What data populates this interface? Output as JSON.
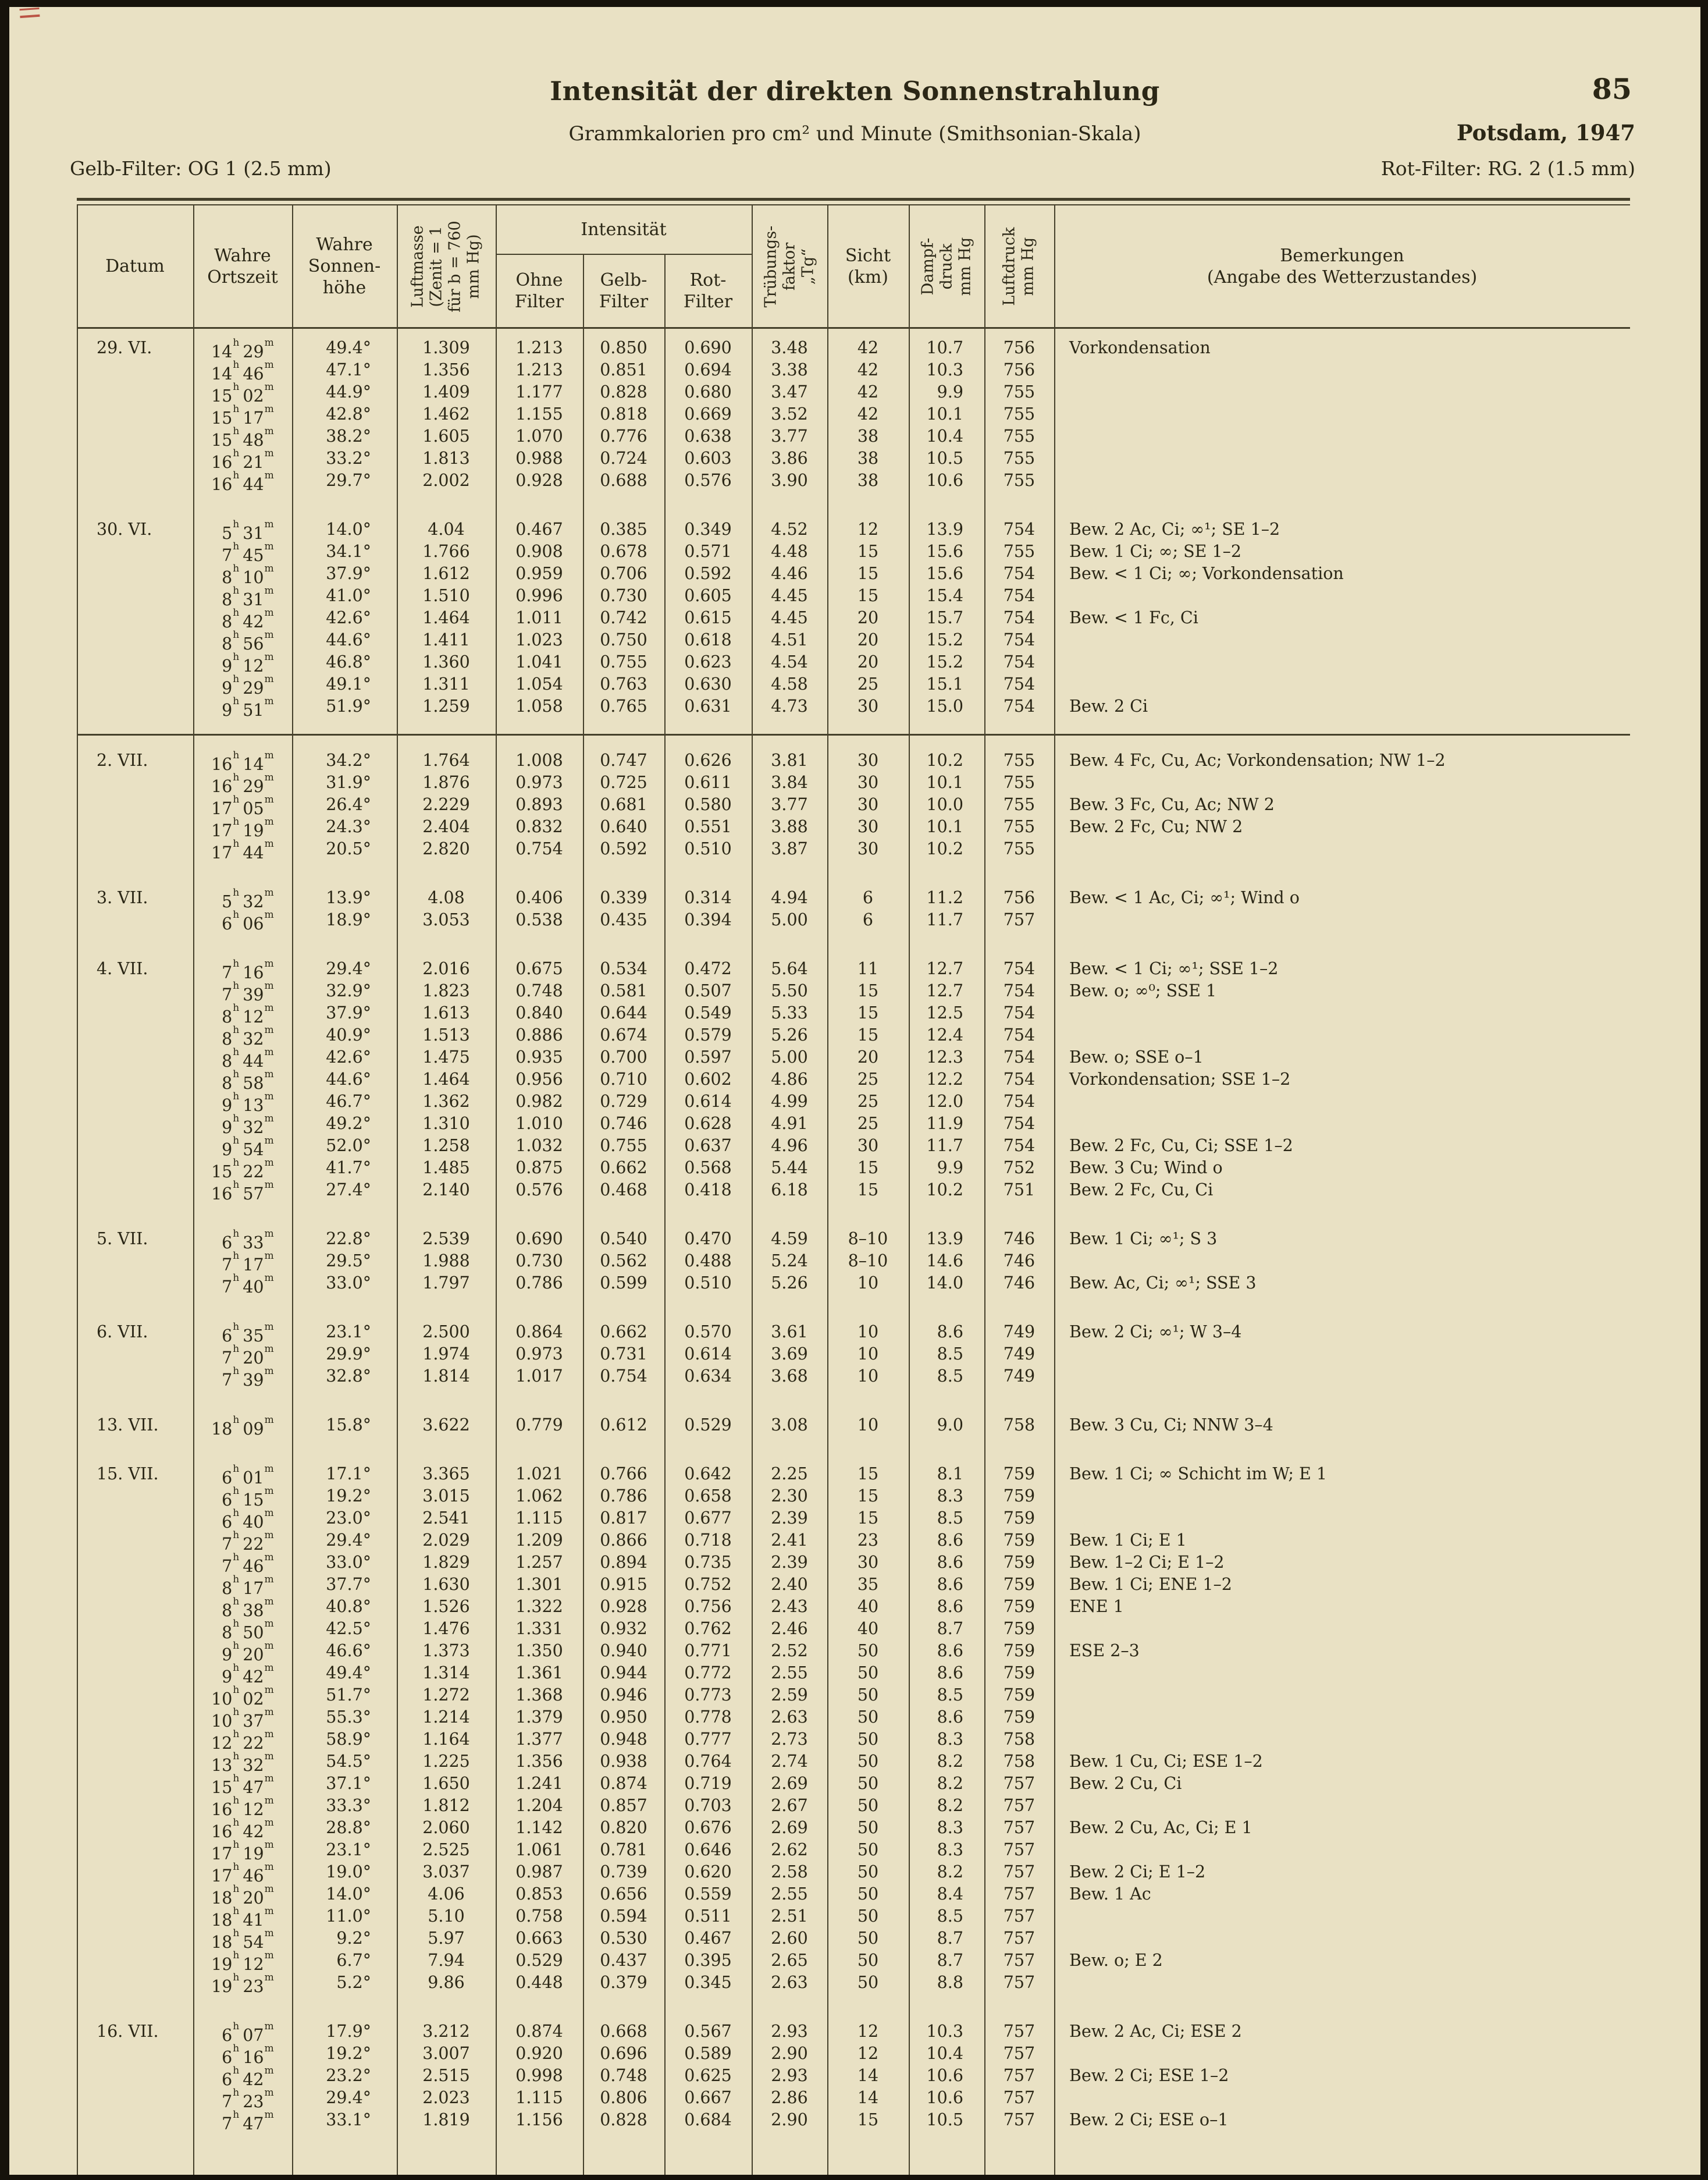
{
  "page": {
    "title": "Intensität der direkten Sonnenstrahlung",
    "page_number": "85",
    "subtitle": "Grammkalorien pro cm² und Minute (Smithsonian-Skala)",
    "location_year": "Potsdam, 1947",
    "filter_note_left": "Gelb-Filter: OG 1 (2.5 mm)",
    "filter_note_right": "Rot-Filter: RG. 2 (1.5 mm)"
  },
  "table": {
    "headers": {
      "datum": "Datum",
      "ortszeit": "Wahre\nOrtszeit",
      "sonnenhoehe": "Wahre\nSonnen-\nhöhe",
      "luftmasse": "Luftmasse\n(Zenit = 1\nfür b = 760\nmm Hg)",
      "intensitaet": "Intensität",
      "ohne_filter": "Ohne\nFilter",
      "gelb_filter": "Gelb-\nFilter",
      "rot_filter": "Rot-\nFilter",
      "truebungsfaktor": "Trübungs-\nfaktor\n„Tg“",
      "sicht": "Sicht\n(km)",
      "dampfdruck": "Dampf-\ndruck\nmm Hg",
      "luftdruck": "Luftdruck\nmm Hg",
      "bemerkungen": "Bemerkungen\n(Angabe des Wetterzustandes)"
    },
    "groups": [
      {
        "date": "29. VI.",
        "rule_after": false,
        "rows": [
          [
            "14h 29m",
            "49.4°",
            "1.309",
            "1.213",
            "0.850",
            "0.690",
            "3.48",
            "42",
            "10.7",
            "756",
            "Vorkondensation"
          ],
          [
            "14h 46m",
            "47.1°",
            "1.356",
            "1.213",
            "0.851",
            "0.694",
            "3.38",
            "42",
            "10.3",
            "756",
            ""
          ],
          [
            "15h 02m",
            "44.9°",
            "1.409",
            "1.177",
            "0.828",
            "0.680",
            "3.47",
            "42",
            "9.9",
            "755",
            ""
          ],
          [
            "15h 17m",
            "42.8°",
            "1.462",
            "1.155",
            "0.818",
            "0.669",
            "3.52",
            "42",
            "10.1",
            "755",
            ""
          ],
          [
            "15h 48m",
            "38.2°",
            "1.605",
            "1.070",
            "0.776",
            "0.638",
            "3.77",
            "38",
            "10.4",
            "755",
            ""
          ],
          [
            "16h 21m",
            "33.2°",
            "1.813",
            "0.988",
            "0.724",
            "0.603",
            "3.86",
            "38",
            "10.5",
            "755",
            ""
          ],
          [
            "16h 44m",
            "29.7°",
            "2.002",
            "0.928",
            "0.688",
            "0.576",
            "3.90",
            "38",
            "10.6",
            "755",
            ""
          ]
        ]
      },
      {
        "date": "30. VI.",
        "rule_after": true,
        "rows": [
          [
            "5h 31m",
            "14.0°",
            "4.04",
            "0.467",
            "0.385",
            "0.349",
            "4.52",
            "12",
            "13.9",
            "754",
            "Bew. 2 Ac, Ci; ∞¹; SE 1–2"
          ],
          [
            "7h 45m",
            "34.1°",
            "1.766",
            "0.908",
            "0.678",
            "0.571",
            "4.48",
            "15",
            "15.6",
            "755",
            "Bew. 1 Ci; ∞; SE 1–2"
          ],
          [
            "8h 10m",
            "37.9°",
            "1.612",
            "0.959",
            "0.706",
            "0.592",
            "4.46",
            "15",
            "15.6",
            "754",
            "Bew. < 1 Ci; ∞; Vorkondensation"
          ],
          [
            "8h 31m",
            "41.0°",
            "1.510",
            "0.996",
            "0.730",
            "0.605",
            "4.45",
            "15",
            "15.4",
            "754",
            ""
          ],
          [
            "8h 42m",
            "42.6°",
            "1.464",
            "1.011",
            "0.742",
            "0.615",
            "4.45",
            "20",
            "15.7",
            "754",
            "Bew. < 1 Fc, Ci"
          ],
          [
            "8h 56m",
            "44.6°",
            "1.411",
            "1.023",
            "0.750",
            "0.618",
            "4.51",
            "20",
            "15.2",
            "754",
            ""
          ],
          [
            "9h 12m",
            "46.8°",
            "1.360",
            "1.041",
            "0.755",
            "0.623",
            "4.54",
            "20",
            "15.2",
            "754",
            ""
          ],
          [
            "9h 29m",
            "49.1°",
            "1.311",
            "1.054",
            "0.763",
            "0.630",
            "4.58",
            "25",
            "15.1",
            "754",
            ""
          ],
          [
            "9h 51m",
            "51.9°",
            "1.259",
            "1.058",
            "0.765",
            "0.631",
            "4.73",
            "30",
            "15.0",
            "754",
            "Bew. 2 Ci"
          ]
        ]
      },
      {
        "date": "2. VII.",
        "rule_after": false,
        "rows": [
          [
            "16h 14m",
            "34.2°",
            "1.764",
            "1.008",
            "0.747",
            "0.626",
            "3.81",
            "30",
            "10.2",
            "755",
            "Bew. 4 Fc, Cu, Ac; Vorkondensation; NW 1–2"
          ],
          [
            "16h 29m",
            "31.9°",
            "1.876",
            "0.973",
            "0.725",
            "0.611",
            "3.84",
            "30",
            "10.1",
            "755",
            ""
          ],
          [
            "17h 05m",
            "26.4°",
            "2.229",
            "0.893",
            "0.681",
            "0.580",
            "3.77",
            "30",
            "10.0",
            "755",
            "Bew. 3 Fc, Cu, Ac; NW 2"
          ],
          [
            "17h 19m",
            "24.3°",
            "2.404",
            "0.832",
            "0.640",
            "0.551",
            "3.88",
            "30",
            "10.1",
            "755",
            "Bew. 2 Fc, Cu; NW 2"
          ],
          [
            "17h 44m",
            "20.5°",
            "2.820",
            "0.754",
            "0.592",
            "0.510",
            "3.87",
            "30",
            "10.2",
            "755",
            ""
          ]
        ]
      },
      {
        "date": "3. VII.",
        "rule_after": false,
        "rows": [
          [
            "5h 32m",
            "13.9°",
            "4.08",
            "0.406",
            "0.339",
            "0.314",
            "4.94",
            "6",
            "11.2",
            "756",
            "Bew. < 1 Ac, Ci; ∞¹; Wind o"
          ],
          [
            "6h 06m",
            "18.9°",
            "3.053",
            "0.538",
            "0.435",
            "0.394",
            "5.00",
            "6",
            "11.7",
            "757",
            ""
          ]
        ]
      },
      {
        "date": "4. VII.",
        "rule_after": false,
        "rows": [
          [
            "7h 16m",
            "29.4°",
            "2.016",
            "0.675",
            "0.534",
            "0.472",
            "5.64",
            "11",
            "12.7",
            "754",
            "Bew. < 1 Ci; ∞¹; SSE 1–2"
          ],
          [
            "7h 39m",
            "32.9°",
            "1.823",
            "0.748",
            "0.581",
            "0.507",
            "5.50",
            "15",
            "12.7",
            "754",
            "Bew. o; ∞⁰; SSE 1"
          ],
          [
            "8h 12m",
            "37.9°",
            "1.613",
            "0.840",
            "0.644",
            "0.549",
            "5.33",
            "15",
            "12.5",
            "754",
            ""
          ],
          [
            "8h 32m",
            "40.9°",
            "1.513",
            "0.886",
            "0.674",
            "0.579",
            "5.26",
            "15",
            "12.4",
            "754",
            ""
          ],
          [
            "8h 44m",
            "42.6°",
            "1.475",
            "0.935",
            "0.700",
            "0.597",
            "5.00",
            "20",
            "12.3",
            "754",
            "Bew. o; SSE o–1"
          ],
          [
            "8h 58m",
            "44.6°",
            "1.464",
            "0.956",
            "0.710",
            "0.602",
            "4.86",
            "25",
            "12.2",
            "754",
            "Vorkondensation; SSE 1–2"
          ],
          [
            "9h 13m",
            "46.7°",
            "1.362",
            "0.982",
            "0.729",
            "0.614",
            "4.99",
            "25",
            "12.0",
            "754",
            ""
          ],
          [
            "9h 32m",
            "49.2°",
            "1.310",
            "1.010",
            "0.746",
            "0.628",
            "4.91",
            "25",
            "11.9",
            "754",
            ""
          ],
          [
            "9h 54m",
            "52.0°",
            "1.258",
            "1.032",
            "0.755",
            "0.637",
            "4.96",
            "30",
            "11.7",
            "754",
            "Bew. 2 Fc, Cu, Ci; SSE 1–2"
          ],
          [
            "15h 22m",
            "41.7°",
            "1.485",
            "0.875",
            "0.662",
            "0.568",
            "5.44",
            "15",
            "9.9",
            "752",
            "Bew. 3 Cu; Wind o"
          ],
          [
            "16h 57m",
            "27.4°",
            "2.140",
            "0.576",
            "0.468",
            "0.418",
            "6.18",
            "15",
            "10.2",
            "751",
            "Bew. 2 Fc, Cu, Ci"
          ]
        ]
      },
      {
        "date": "5. VII.",
        "rule_after": false,
        "rows": [
          [
            "6h 33m",
            "22.8°",
            "2.539",
            "0.690",
            "0.540",
            "0.470",
            "4.59",
            "8–10",
            "13.9",
            "746",
            "Bew. 1 Ci; ∞¹; S 3"
          ],
          [
            "7h 17m",
            "29.5°",
            "1.988",
            "0.730",
            "0.562",
            "0.488",
            "5.24",
            "8–10",
            "14.6",
            "746",
            ""
          ],
          [
            "7h 40m",
            "33.0°",
            "1.797",
            "0.786",
            "0.599",
            "0.510",
            "5.26",
            "10",
            "14.0",
            "746",
            "Bew. Ac, Ci; ∞¹; SSE 3"
          ]
        ]
      },
      {
        "date": "6. VII.",
        "rule_after": false,
        "rows": [
          [
            "6h 35m",
            "23.1°",
            "2.500",
            "0.864",
            "0.662",
            "0.570",
            "3.61",
            "10",
            "8.6",
            "749",
            "Bew. 2 Ci; ∞¹; W 3–4"
          ],
          [
            "7h 20m",
            "29.9°",
            "1.974",
            "0.973",
            "0.731",
            "0.614",
            "3.69",
            "10",
            "8.5",
            "749",
            ""
          ],
          [
            "7h 39m",
            "32.8°",
            "1.814",
            "1.017",
            "0.754",
            "0.634",
            "3.68",
            "10",
            "8.5",
            "749",
            ""
          ]
        ]
      },
      {
        "date": "13. VII.",
        "rule_after": false,
        "rows": [
          [
            "18h 09m",
            "15.8°",
            "3.622",
            "0.779",
            "0.612",
            "0.529",
            "3.08",
            "10",
            "9.0",
            "758",
            "Bew. 3 Cu, Ci; NNW 3–4"
          ]
        ]
      },
      {
        "date": "15. VII.",
        "rule_after": false,
        "rows": [
          [
            "6h 01m",
            "17.1°",
            "3.365",
            "1.021",
            "0.766",
            "0.642",
            "2.25",
            "15",
            "8.1",
            "759",
            "Bew. 1 Ci; ∞ Schicht im W; E 1"
          ],
          [
            "6h 15m",
            "19.2°",
            "3.015",
            "1.062",
            "0.786",
            "0.658",
            "2.30",
            "15",
            "8.3",
            "759",
            ""
          ],
          [
            "6h 40m",
            "23.0°",
            "2.541",
            "1.115",
            "0.817",
            "0.677",
            "2.39",
            "15",
            "8.5",
            "759",
            ""
          ],
          [
            "7h 22m",
            "29.4°",
            "2.029",
            "1.209",
            "0.866",
            "0.718",
            "2.41",
            "23",
            "8.6",
            "759",
            "Bew. 1 Ci; E 1"
          ],
          [
            "7h 46m",
            "33.0°",
            "1.829",
            "1.257",
            "0.894",
            "0.735",
            "2.39",
            "30",
            "8.6",
            "759",
            "Bew. 1–2 Ci; E 1–2"
          ],
          [
            "8h 17m",
            "37.7°",
            "1.630",
            "1.301",
            "0.915",
            "0.752",
            "2.40",
            "35",
            "8.6",
            "759",
            "Bew. 1 Ci; ENE 1–2"
          ],
          [
            "8h 38m",
            "40.8°",
            "1.526",
            "1.322",
            "0.928",
            "0.756",
            "2.43",
            "40",
            "8.6",
            "759",
            "ENE 1"
          ],
          [
            "8h 50m",
            "42.5°",
            "1.476",
            "1.331",
            "0.932",
            "0.762",
            "2.46",
            "40",
            "8.7",
            "759",
            ""
          ],
          [
            "9h 20m",
            "46.6°",
            "1.373",
            "1.350",
            "0.940",
            "0.771",
            "2.52",
            "50",
            "8.6",
            "759",
            "ESE 2–3"
          ],
          [
            "9h 42m",
            "49.4°",
            "1.314",
            "1.361",
            "0.944",
            "0.772",
            "2.55",
            "50",
            "8.6",
            "759",
            ""
          ],
          [
            "10h 02m",
            "51.7°",
            "1.272",
            "1.368",
            "0.946",
            "0.773",
            "2.59",
            "50",
            "8.5",
            "759",
            ""
          ],
          [
            "10h 37m",
            "55.3°",
            "1.214",
            "1.379",
            "0.950",
            "0.778",
            "2.63",
            "50",
            "8.6",
            "759",
            ""
          ],
          [
            "12h 22m",
            "58.9°",
            "1.164",
            "1.377",
            "0.948",
            "0.777",
            "2.73",
            "50",
            "8.3",
            "758",
            ""
          ],
          [
            "13h 32m",
            "54.5°",
            "1.225",
            "1.356",
            "0.938",
            "0.764",
            "2.74",
            "50",
            "8.2",
            "758",
            "Bew. 1 Cu, Ci; ESE 1–2"
          ],
          [
            "15h 47m",
            "37.1°",
            "1.650",
            "1.241",
            "0.874",
            "0.719",
            "2.69",
            "50",
            "8.2",
            "757",
            "Bew. 2 Cu, Ci"
          ],
          [
            "16h 12m",
            "33.3°",
            "1.812",
            "1.204",
            "0.857",
            "0.703",
            "2.67",
            "50",
            "8.2",
            "757",
            ""
          ],
          [
            "16h 42m",
            "28.8°",
            "2.060",
            "1.142",
            "0.820",
            "0.676",
            "2.69",
            "50",
            "8.3",
            "757",
            "Bew. 2 Cu, Ac, Ci; E 1"
          ],
          [
            "17h 19m",
            "23.1°",
            "2.525",
            "1.061",
            "0.781",
            "0.646",
            "2.62",
            "50",
            "8.3",
            "757",
            ""
          ],
          [
            "17h 46m",
            "19.0°",
            "3.037",
            "0.987",
            "0.739",
            "0.620",
            "2.58",
            "50",
            "8.2",
            "757",
            "Bew. 2 Ci; E 1–2"
          ],
          [
            "18h 20m",
            "14.0°",
            "4.06",
            "0.853",
            "0.656",
            "0.559",
            "2.55",
            "50",
            "8.4",
            "757",
            "Bew. 1 Ac"
          ],
          [
            "18h 41m",
            "11.0°",
            "5.10",
            "0.758",
            "0.594",
            "0.511",
            "2.51",
            "50",
            "8.5",
            "757",
            ""
          ],
          [
            "18h 54m",
            "9.2°",
            "5.97",
            "0.663",
            "0.530",
            "0.467",
            "2.60",
            "50",
            "8.7",
            "757",
            ""
          ],
          [
            "19h 12m",
            "6.7°",
            "7.94",
            "0.529",
            "0.437",
            "0.395",
            "2.65",
            "50",
            "8.7",
            "757",
            "Bew. o; E 2"
          ],
          [
            "19h 23m",
            "5.2°",
            "9.86",
            "0.448",
            "0.379",
            "0.345",
            "2.63",
            "50",
            "8.8",
            "757",
            ""
          ]
        ]
      },
      {
        "date": "16. VII.",
        "rule_after": false,
        "rows": [
          [
            "6h 07m",
            "17.9°",
            "3.212",
            "0.874",
            "0.668",
            "0.567",
            "2.93",
            "12",
            "10.3",
            "757",
            "Bew. 2 Ac, Ci; ESE 2"
          ],
          [
            "6h 16m",
            "19.2°",
            "3.007",
            "0.920",
            "0.696",
            "0.589",
            "2.90",
            "12",
            "10.4",
            "757",
            ""
          ],
          [
            "6h 42m",
            "23.2°",
            "2.515",
            "0.998",
            "0.748",
            "0.625",
            "2.93",
            "14",
            "10.6",
            "757",
            "Bew. 2 Ci; ESE 1–2"
          ],
          [
            "7h 23m",
            "29.4°",
            "2.023",
            "1.115",
            "0.806",
            "0.667",
            "2.86",
            "14",
            "10.6",
            "757",
            ""
          ],
          [
            "7h 47m",
            "33.1°",
            "1.819",
            "1.156",
            "0.828",
            "0.684",
            "2.90",
            "15",
            "10.5",
            "757",
            "Bew. 2 Ci; ESE o–1"
          ]
        ]
      }
    ]
  }
}
